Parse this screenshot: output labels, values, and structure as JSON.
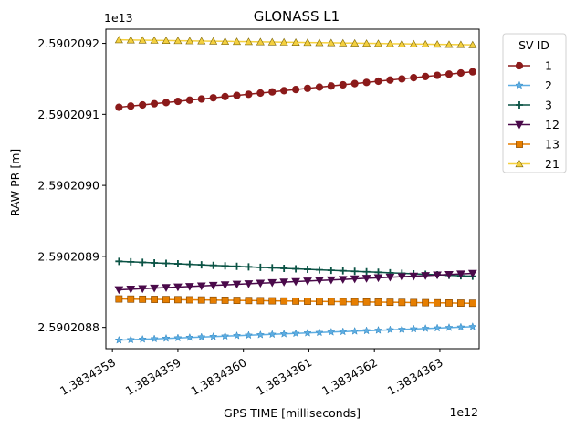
{
  "chart_data": {
    "type": "line",
    "title": "GLONASS L1",
    "xlabel": "GPS TIME [milliseconds]",
    "ylabel": "RAW PR [m]",
    "x_offset_text": "1e12",
    "y_offset_text": "1e13",
    "x_ticks": [
      1.3834358,
      1.3834359,
      1.383436,
      1.3834361,
      1.3834362,
      1.3834363
    ],
    "x_tick_labels": [
      "1.3834358",
      "1.3834359",
      "1.3834360",
      "1.3834361",
      "1.3834362",
      "1.3834363"
    ],
    "y_ticks": [
      2.5902088,
      2.5902089,
      2.590209,
      2.5902091,
      2.5902092
    ],
    "y_tick_labels": [
      "2.5902088",
      "2.5902089",
      "2.5902090",
      "2.5902091",
      "2.5902092"
    ],
    "xlim": [
      1.38343579,
      1.38343636
    ],
    "ylim": [
      2.59020877,
      2.59020922
    ],
    "grid": false,
    "legend": {
      "title": "SV ID",
      "placement": "outside-right"
    },
    "x_start": 1.38343581,
    "x_end": 1.38343635,
    "n_points": 31,
    "series": [
      {
        "name": "1",
        "color": "#8b1a1a",
        "marker": "circle",
        "start": 2.59020911,
        "end": 2.59020916
      },
      {
        "name": "2",
        "color": "#5dade2",
        "marker": "star",
        "start": 2.590208782,
        "end": 2.590208801
      },
      {
        "name": "3",
        "color": "#0b5345",
        "marker": "plus",
        "start": 2.590208893,
        "end": 2.590208872
      },
      {
        "name": "12",
        "color": "#4a0a4a",
        "marker": "triangle_down",
        "start": 2.590208853,
        "end": 2.590208876
      },
      {
        "name": "13",
        "color": "#e67e00",
        "marker": "square",
        "start": 2.59020884,
        "end": 2.590208834
      },
      {
        "name": "21",
        "color": "#f4d03f",
        "marker": "triangle_up",
        "start": 2.590209205,
        "end": 2.590209198
      }
    ]
  }
}
